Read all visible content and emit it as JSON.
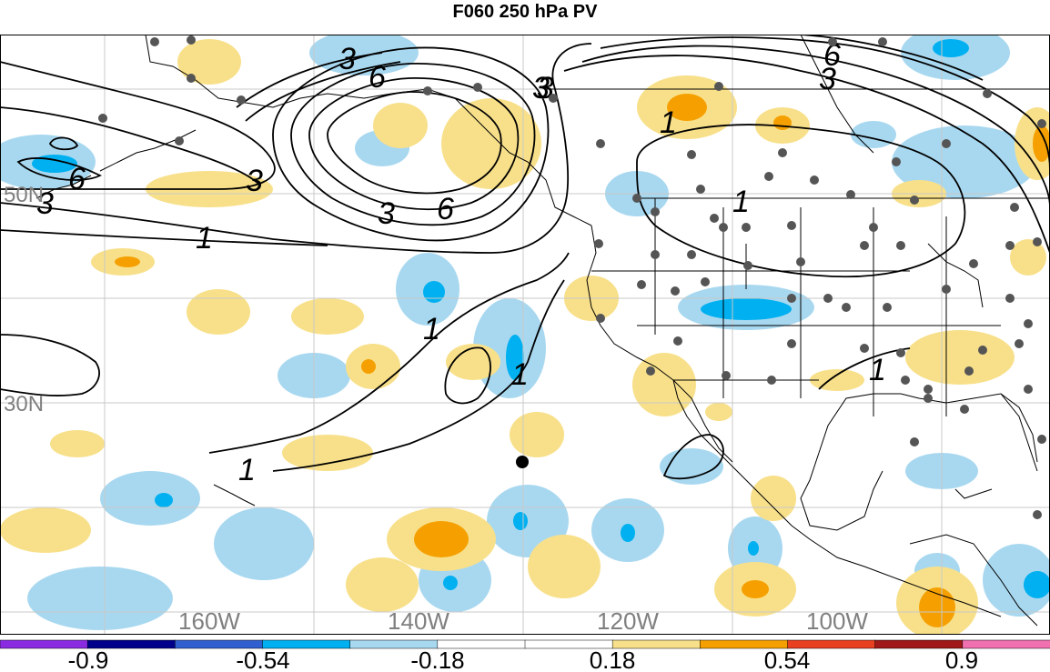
{
  "title": "F060 250 hPa PV",
  "lat_labels": [
    {
      "text": "50N"
    },
    {
      "text": "30N"
    }
  ],
  "lon_labels": [
    {
      "text": "160W"
    },
    {
      "text": "140W"
    },
    {
      "text": "120W"
    },
    {
      "text": "100W"
    }
  ],
  "contour_labels": [
    "3",
    "6",
    "3",
    "6",
    "3",
    "6",
    "3",
    "3",
    "6",
    "3",
    "3",
    "1",
    "1",
    "1",
    "1",
    "1",
    "1",
    "1"
  ],
  "colorbar": {
    "tick_labels": [
      "-0.9",
      "-0.54",
      "-0.18",
      "0.18",
      "0.54",
      "0.9"
    ],
    "colors": [
      "#8a2be2",
      "#00008b",
      "#3060d0",
      "#00b0f0",
      "#a8d8f0",
      "#ffffff",
      "#ffffff",
      "#f8e08a",
      "#f5a000",
      "#e84020",
      "#a01818",
      "#f070b0"
    ]
  },
  "colors": {
    "neg_light": "#a8d8f0",
    "neg_mid": "#00b0f0",
    "pos_light": "#f8e08a",
    "pos_mid": "#f5a000",
    "contour": "#000000",
    "stations": "#555555",
    "grid": "#c8c8c8"
  }
}
